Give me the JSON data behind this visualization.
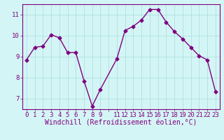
{
  "x": [
    0,
    1,
    2,
    3,
    4,
    5,
    6,
    7,
    8,
    9,
    11,
    12,
    13,
    14,
    15,
    16,
    17,
    18,
    19,
    20,
    21,
    22,
    23
  ],
  "y": [
    8.85,
    9.45,
    9.5,
    10.05,
    9.9,
    9.2,
    9.2,
    7.85,
    6.65,
    7.45,
    8.9,
    10.25,
    10.45,
    10.75,
    11.25,
    11.25,
    10.65,
    10.2,
    9.85,
    9.45,
    9.05,
    8.85,
    7.35
  ],
  "line_color": "#800080",
  "marker": "D",
  "marker_size": 2.5,
  "line_width": 1.0,
  "background_color": "#d4f5f5",
  "grid_color": "#b0e0e0",
  "xlabel": "Windchill (Refroidissement éolien,°C)",
  "xlim": [
    -0.5,
    23.5
  ],
  "ylim": [
    6.5,
    11.5
  ],
  "yticks": [
    7,
    8,
    9,
    10,
    11
  ],
  "xticks": [
    0,
    1,
    2,
    3,
    4,
    5,
    6,
    7,
    8,
    9,
    10,
    11,
    12,
    13,
    14,
    15,
    16,
    17,
    18,
    19,
    20,
    21,
    22,
    23
  ],
  "xtick_labels": [
    "0",
    "1",
    "2",
    "3",
    "4",
    "5",
    "6",
    "7",
    "8",
    "9",
    "",
    "11",
    "12",
    "13",
    "14",
    "15",
    "16",
    "17",
    "18",
    "19",
    "20",
    "21",
    "22",
    "23"
  ],
  "xlabel_fontsize": 7,
  "tick_fontsize": 6.5,
  "border_color": "#800080"
}
